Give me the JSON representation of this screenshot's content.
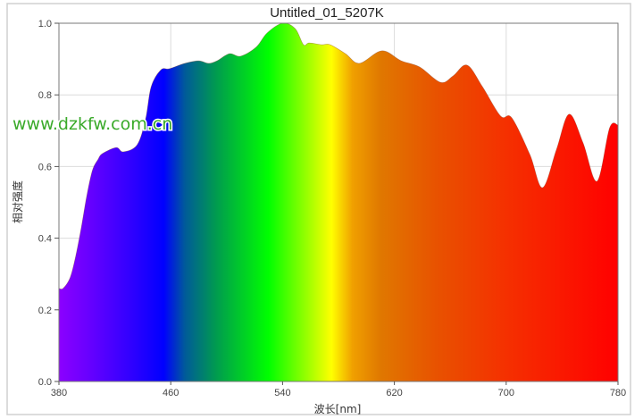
{
  "chart_data": {
    "type": "area",
    "title": "Untitled_01_5207K",
    "xlabel": "波长[nm]",
    "ylabel": "相对强度",
    "xlim": [
      380,
      780
    ],
    "ylim": [
      0,
      1.0
    ],
    "xticks": [
      "380",
      "460",
      "540",
      "620",
      "700",
      "780"
    ],
    "yticks": [
      "0.0",
      "0.2",
      "0.4",
      "0.6",
      "0.8",
      "1.0"
    ],
    "grid": true,
    "fill": "visible-spectrum gradient",
    "x": [
      380,
      383,
      388,
      392,
      396,
      400,
      404,
      408,
      411,
      421,
      426,
      436,
      442,
      446,
      453,
      459,
      470,
      480,
      487,
      493,
      502,
      510,
      521,
      529,
      540,
      549,
      555,
      559,
      568,
      574,
      585,
      595,
      611,
      625,
      638,
      653,
      662,
      672,
      683,
      696,
      704,
      717,
      726,
      736,
      745,
      755,
      765,
      774,
      780
    ],
    "y": [
      0.26,
      0.26,
      0.29,
      0.35,
      0.43,
      0.52,
      0.59,
      0.62,
      0.636,
      0.653,
      0.641,
      0.661,
      0.733,
      0.823,
      0.87,
      0.873,
      0.888,
      0.895,
      0.888,
      0.895,
      0.915,
      0.908,
      0.933,
      0.973,
      1.0,
      0.985,
      0.94,
      0.945,
      0.94,
      0.94,
      0.915,
      0.888,
      0.923,
      0.895,
      0.878,
      0.835,
      0.853,
      0.883,
      0.823,
      0.741,
      0.736,
      0.633,
      0.541,
      0.648,
      0.746,
      0.666,
      0.559,
      0.708,
      0.716
    ],
    "spectrum_colors": [
      {
        "nm": 380,
        "color": "#8c00ff"
      },
      {
        "nm": 400,
        "color": "#6a00ff"
      },
      {
        "nm": 430,
        "color": "#3300ff"
      },
      {
        "nm": 455,
        "color": "#0000ff"
      },
      {
        "nm": 470,
        "color": "#005a9a"
      },
      {
        "nm": 492,
        "color": "#009a50"
      },
      {
        "nm": 530,
        "color": "#00ff00"
      },
      {
        "nm": 560,
        "color": "#a8ff00"
      },
      {
        "nm": 575,
        "color": "#ffff00"
      },
      {
        "nm": 590,
        "color": "#f0a000"
      },
      {
        "nm": 610,
        "color": "#e07800"
      },
      {
        "nm": 650,
        "color": "#e85200"
      },
      {
        "nm": 700,
        "color": "#f53000"
      },
      {
        "nm": 780,
        "color": "#ff0000"
      }
    ]
  },
  "watermark": "www.dzkfw.com.cn"
}
